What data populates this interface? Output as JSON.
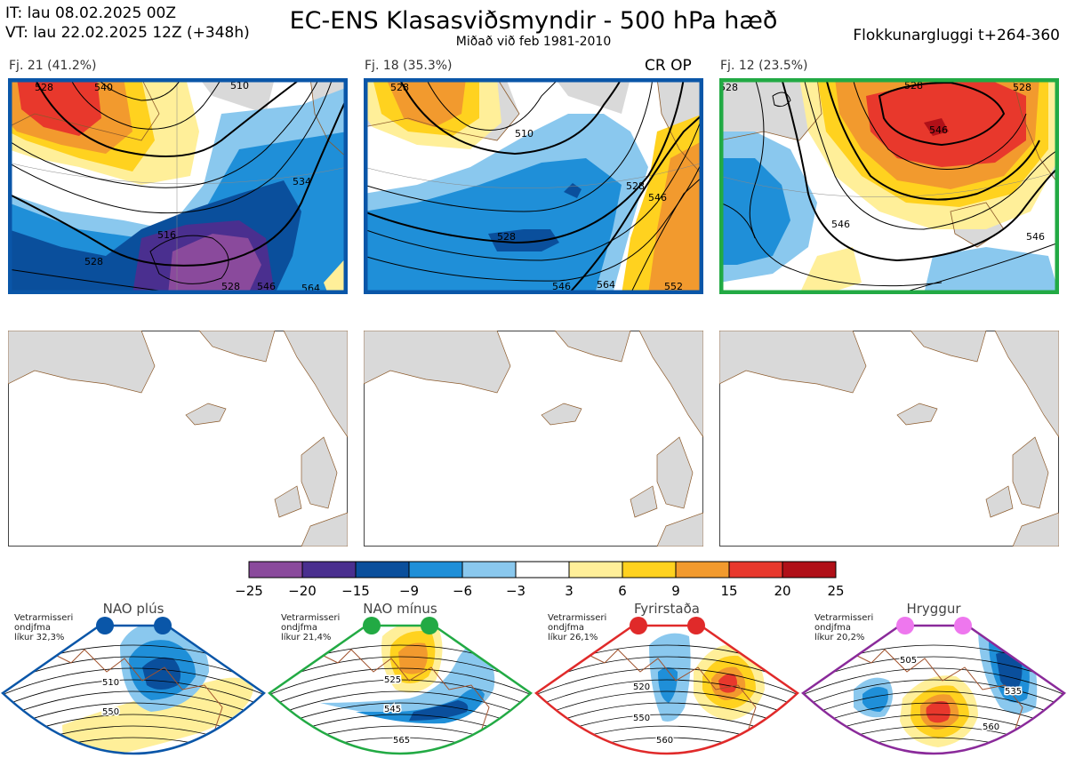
{
  "header": {
    "it_line": "IT: lau 08.02.2025 00Z",
    "vt_line": "VT: lau 22.02.2025 12Z  (+348h)",
    "title": "EC-ENS Klasasviðsmyndir - 500 hPa hæð",
    "subtitle": "Miðað við feb 1981-2010",
    "window": "Flokkunargluggi t+264-360"
  },
  "clusters": [
    {
      "label": "Fj. 21 (41.2%)",
      "frame_color": "#0a56a8",
      "contours": [
        "528",
        "528",
        "516",
        "510",
        "540",
        "564",
        "546",
        "528",
        "534"
      ]
    },
    {
      "label": "Fj. 18 (35.3%)",
      "marker": "CR OP",
      "frame_color": "#0a56a8",
      "contours": [
        "528",
        "510",
        "528",
        "546",
        "528",
        "546",
        "564",
        "552"
      ]
    },
    {
      "label": "Fj. 12 (23.5%)",
      "frame_color": "#22aa44",
      "contours": [
        "528",
        "546",
        "528",
        "546",
        "546",
        "528"
      ]
    }
  ],
  "colorbar": {
    "ticks": [
      "−25",
      "−20",
      "−15",
      "−9",
      "−6",
      "−3",
      "3",
      "6",
      "9",
      "15",
      "20",
      "25"
    ],
    "colors": [
      "#8a4a9c",
      "#4a2f8f",
      "#0a4f9c",
      "#1f8fd8",
      "#8ac8ee",
      "#ffffff",
      "#ffef99",
      "#ffd21f",
      "#f29a2e",
      "#e8382c",
      "#b01018"
    ]
  },
  "regimes": [
    {
      "title": "NAO plús",
      "note": [
        "Vetrarmisseri",
        "ondjfma",
        "líkur 32,3%"
      ],
      "frame_color": "#0a56a8",
      "dot_color": "#0a56a8",
      "contours": [
        "510",
        "550"
      ]
    },
    {
      "title": "NAO mínus",
      "note": [
        "Vetrarmisseri",
        "ondjfma",
        "líkur 21,4%"
      ],
      "frame_color": "#22aa44",
      "dot_color": "#22aa44",
      "contours": [
        "525",
        "545",
        "565"
      ]
    },
    {
      "title": "Fyrirstaða",
      "note": [
        "Vetrarmisseri",
        "ondjfma",
        "líkur 26,1%"
      ],
      "frame_color": "#e02a2a",
      "dot_color": "#e02a2a",
      "contours": [
        "520",
        "550",
        "560"
      ]
    },
    {
      "title": "Hryggur",
      "note": [
        "Vetrarmisseri",
        "ondjfma",
        "líkur 20,2%"
      ],
      "frame_color": "#8a2a9a",
      "dot_color": "#ee77ee",
      "contours": [
        "505",
        "535",
        "560"
      ]
    }
  ]
}
